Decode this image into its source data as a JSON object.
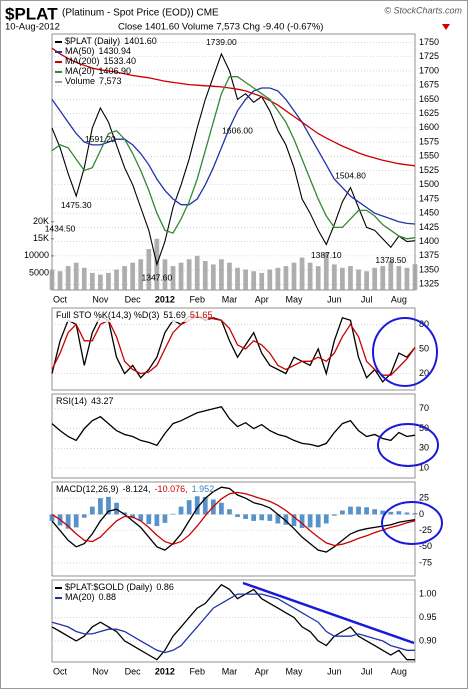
{
  "header": {
    "symbol": "$PLAT",
    "description": "(Platinum - Spot Price (EOD)) CME",
    "source": "© StockCharts.com",
    "date": "10-Aug-2012",
    "quote": "Close 1401.60 Volume 7,573 Chg -9.40 (-0.67%)"
  },
  "chart_data": [
    {
      "type": "line",
      "categories": [
        null,
        "Oct",
        null,
        null,
        null,
        null,
        "Nov",
        null,
        null,
        null,
        "Dec",
        null,
        null,
        null,
        "2012",
        null,
        null,
        null,
        "Feb",
        null,
        null,
        null,
        "Mar",
        null,
        null,
        null,
        "Apr",
        null,
        null,
        null,
        "May",
        null,
        null,
        null,
        null,
        "Jun",
        null,
        null,
        null,
        "Jul",
        null,
        null,
        null,
        "Aug",
        null,
        null
      ],
      "ylim": [
        1315,
        1765
      ],
      "yticks": [
        1325,
        1350,
        1375,
        1400,
        1425,
        1450,
        1475,
        1500,
        1525,
        1550,
        1575,
        1600,
        1625,
        1650,
        1675,
        1700,
        1725,
        1750
      ],
      "y2lim": [
        0,
        75000
      ],
      "y2ticks": [
        5000,
        10000,
        {
          "value": 15000,
          "label": "15K"
        },
        {
          "value": 20000,
          "label": "20K"
        }
      ],
      "series": [
        {
          "name": "Volume",
          "label_value": "7,573",
          "type": "bar",
          "axis": "y2",
          "color": "#a0a0a0",
          "values": [
            6000,
            5500,
            7000,
            8000,
            6500,
            5000,
            4500,
            5000,
            6000,
            7000,
            8000,
            9000,
            12000,
            15000,
            9000,
            7000,
            8000,
            9000,
            10000,
            8500,
            7500,
            9000,
            8000,
            6500,
            6000,
            5500,
            5000,
            6000,
            6500,
            7000,
            8000,
            9500,
            8000,
            7000,
            11000,
            7500,
            6500,
            7000,
            6000,
            5500,
            6500,
            7000,
            8500,
            7000,
            6500,
            7573
          ]
        },
        {
          "name": "$PLAT (Daily)",
          "label_value": "1401.60",
          "color": "#000000",
          "values": [
            1600,
            1565,
            1520,
            1480,
            1530,
            1600,
            1635,
            1610,
            1570,
            1530,
            1500,
            1460,
            1420,
            1360,
            1400,
            1460,
            1500,
            1545,
            1600,
            1650,
            1690,
            1730,
            1700,
            1650,
            1660,
            1645,
            1655,
            1630,
            1595,
            1570,
            1530,
            1475,
            1450,
            1420,
            1395,
            1430,
            1470,
            1495,
            1460,
            1425,
            1420,
            1405,
            1390,
            1410,
            1400,
            1401.6
          ]
        },
        {
          "name": "MA(50)",
          "label_value": "1430.94",
          "color": "#2233aa",
          "values": [
            1650,
            1630,
            1610,
            1590,
            1575,
            1570,
            1570,
            1575,
            1580,
            1580,
            1570,
            1555,
            1535,
            1510,
            1490,
            1475,
            1465,
            1465,
            1475,
            1500,
            1530,
            1565,
            1600,
            1630,
            1650,
            1665,
            1670,
            1670,
            1665,
            1650,
            1630,
            1610,
            1585,
            1560,
            1535,
            1510,
            1495,
            1480,
            1470,
            1460,
            1450,
            1445,
            1440,
            1435,
            1432,
            1430.94
          ]
        },
        {
          "name": "MA(200)",
          "label_value": "1533.40",
          "color": "#cc0000",
          "values": [
            1740,
            1730,
            1722,
            1715,
            1710,
            1705,
            1702,
            1700,
            1698,
            1695,
            1692,
            1690,
            1688,
            1685,
            1682,
            1680,
            1678,
            1676,
            1675,
            1674,
            1673,
            1672,
            1670,
            1668,
            1665,
            1660,
            1655,
            1648,
            1640,
            1630,
            1620,
            1610,
            1600,
            1590,
            1582,
            1575,
            1568,
            1562,
            1556,
            1551,
            1547,
            1543,
            1540,
            1537,
            1535,
            1533.4
          ]
        },
        {
          "name": "MA(20)",
          "label_value": "1406.90",
          "color": "#338833",
          "values": [
            1560,
            1570,
            1565,
            1545,
            1525,
            1530,
            1560,
            1590,
            1595,
            1580,
            1555,
            1525,
            1490,
            1450,
            1420,
            1415,
            1440,
            1470,
            1510,
            1560,
            1610,
            1660,
            1690,
            1690,
            1680,
            1670,
            1660,
            1650,
            1630,
            1610,
            1580,
            1545,
            1510,
            1475,
            1445,
            1425,
            1425,
            1440,
            1455,
            1455,
            1445,
            1430,
            1420,
            1410,
            1405,
            1406.9
          ]
        }
      ],
      "annotations": [
        {
          "label": "1591.20",
          "value": 1591.2,
          "index": 6
        },
        {
          "label": "1475.30",
          "value": 1475.3,
          "index": 3
        },
        {
          "label": "1434.50",
          "value": 1434.5,
          "index": 1
        },
        {
          "label": "1347.60",
          "value": 1347.6,
          "index": 13
        },
        {
          "label": "1739.00",
          "value": 1739,
          "index": 21
        },
        {
          "label": "1606.00",
          "value": 1606,
          "index": 23
        },
        {
          "label": "1504.80",
          "value": 1504.8,
          "index": 37
        },
        {
          "label": "1387.10",
          "value": 1387.1,
          "index": 34
        },
        {
          "label": "1378.50",
          "value": 1378.5,
          "index": 42
        }
      ]
    },
    {
      "type": "line",
      "title": "Full STO %K(14,3) %D(3)",
      "ylim": [
        0,
        100
      ],
      "yticks": [
        20,
        50,
        80
      ],
      "series": [
        {
          "name": "%K",
          "label_value": "51.69",
          "color": "#000000",
          "values": [
            20,
            60,
            85,
            80,
            30,
            70,
            90,
            85,
            40,
            20,
            30,
            15,
            25,
            40,
            70,
            85,
            80,
            90,
            90,
            85,
            88,
            85,
            60,
            40,
            55,
            70,
            45,
            30,
            25,
            20,
            40,
            35,
            30,
            50,
            20,
            60,
            88,
            85,
            40,
            15,
            25,
            10,
            20,
            45,
            40,
            51.69
          ]
        },
        {
          "name": "%D",
          "label_value": "51.65",
          "color": "#cc0000",
          "values": [
            25,
            45,
            70,
            80,
            60,
            60,
            80,
            85,
            65,
            35,
            25,
            20,
            22,
            30,
            50,
            70,
            80,
            85,
            90,
            88,
            87,
            85,
            75,
            55,
            50,
            60,
            55,
            45,
            30,
            25,
            30,
            35,
            35,
            40,
            35,
            45,
            65,
            80,
            65,
            35,
            25,
            18,
            18,
            28,
            38,
            51.65
          ]
        }
      ]
    },
    {
      "type": "line",
      "title": "RSI(14)",
      "ylim": [
        0,
        85
      ],
      "yticks": [
        10,
        30,
        50,
        70
      ],
      "series": [
        {
          "name": "RSI",
          "label_value": "43.27",
          "color": "#000000",
          "values": [
            55,
            48,
            42,
            38,
            50,
            58,
            62,
            55,
            48,
            44,
            42,
            38,
            36,
            33,
            45,
            55,
            58,
            62,
            66,
            68,
            70,
            72,
            60,
            52,
            56,
            50,
            54,
            48,
            44,
            42,
            38,
            35,
            34,
            32,
            35,
            46,
            55,
            58,
            48,
            42,
            44,
            40,
            38,
            46,
            42,
            43.27
          ]
        }
      ]
    },
    {
      "type": "line",
      "title": "MACD(12,26,9)",
      "ylim": [
        -95,
        50
      ],
      "yticks": [
        25,
        0,
        -25,
        -50,
        -75
      ],
      "series": [
        {
          "name": "Histogram",
          "label_value": "1.952",
          "type": "bar",
          "color": "#3a7fc1",
          "values": [
            -10,
            -17,
            -22,
            -20,
            -5,
            12,
            25,
            27,
            18,
            3,
            -6,
            -10,
            -15,
            -18,
            -13,
            1,
            12,
            22,
            28,
            27,
            23,
            18,
            8,
            -4,
            -7,
            -10,
            -9,
            -10,
            -14,
            -16,
            -18,
            -21,
            -20,
            -20,
            -14,
            -2,
            6,
            12,
            12,
            11,
            8,
            6,
            4,
            5,
            3,
            1.952
          ]
        },
        {
          "name": "MACD",
          "label_value": "-8.124,",
          "color": "#000000",
          "values": [
            -10,
            -25,
            -40,
            -50,
            -45,
            -30,
            -10,
            5,
            8,
            0,
            -10,
            -20,
            -35,
            -50,
            -55,
            -45,
            -30,
            -10,
            10,
            25,
            35,
            42,
            40,
            30,
            25,
            18,
            15,
            10,
            0,
            -10,
            -22,
            -35,
            -45,
            -55,
            -58,
            -50,
            -40,
            -30,
            -25,
            -22,
            -20,
            -18,
            -16,
            -12,
            -10,
            -8.124
          ]
        },
        {
          "name": "Signal",
          "label_value": "-10.076,",
          "color": "#cc0000",
          "values": [
            0,
            -8,
            -18,
            -30,
            -40,
            -42,
            -35,
            -22,
            -10,
            -3,
            -4,
            -10,
            -20,
            -32,
            -42,
            -46,
            -42,
            -32,
            -18,
            -2,
            12,
            24,
            32,
            34,
            32,
            28,
            24,
            20,
            14,
            6,
            -4,
            -14,
            -25,
            -35,
            -44,
            -48,
            -46,
            -42,
            -37,
            -33,
            -28,
            -24,
            -20,
            -17,
            -13,
            -10.076
          ]
        }
      ]
    },
    {
      "type": "line",
      "categories": [
        null,
        "Oct",
        null,
        null,
        null,
        null,
        "Nov",
        null,
        null,
        null,
        "Dec",
        null,
        null,
        null,
        "2012",
        null,
        null,
        null,
        "Feb",
        null,
        null,
        null,
        "Mar",
        null,
        null,
        null,
        "Apr",
        null,
        null,
        null,
        "May",
        null,
        null,
        null,
        null,
        "Jun",
        null,
        null,
        null,
        "Jul",
        null,
        null,
        null,
        "Aug",
        null,
        null
      ],
      "ylim": [
        0.855,
        1.03
      ],
      "yticks": [
        {
          "value": 0.9,
          "label": "0.90"
        },
        {
          "value": 0.95,
          "label": "0.95"
        },
        {
          "value": 1.0,
          "label": "1.00"
        }
      ],
      "series": [
        {
          "name": "$PLAT:$GOLD (Daily)",
          "label_value": "0.86",
          "color": "#000000",
          "values": [
            0.93,
            0.92,
            0.91,
            0.9,
            0.91,
            0.93,
            0.94,
            0.93,
            0.92,
            0.9,
            0.89,
            0.88,
            0.87,
            0.86,
            0.88,
            0.91,
            0.93,
            0.95,
            0.97,
            0.98,
            1.0,
            1.02,
            1.01,
            0.99,
            1.0,
            1.01,
            0.99,
            0.98,
            0.97,
            0.96,
            0.95,
            0.93,
            0.92,
            0.9,
            0.89,
            0.91,
            0.92,
            0.93,
            0.91,
            0.9,
            0.89,
            0.88,
            0.87,
            0.88,
            0.86,
            0.86
          ]
        },
        {
          "name": "MA(20)",
          "label_value": "0.88",
          "color": "#2233aa",
          "values": [
            0.94,
            0.935,
            0.93,
            0.92,
            0.915,
            0.915,
            0.92,
            0.925,
            0.925,
            0.92,
            0.91,
            0.9,
            0.89,
            0.88,
            0.875,
            0.88,
            0.89,
            0.91,
            0.93,
            0.95,
            0.97,
            0.98,
            0.99,
            1.0,
            1.0,
            1.0,
            1.0,
            0.995,
            0.99,
            0.98,
            0.97,
            0.96,
            0.95,
            0.94,
            0.92,
            0.91,
            0.91,
            0.91,
            0.915,
            0.91,
            0.905,
            0.9,
            0.89,
            0.885,
            0.88,
            0.88
          ]
        }
      ]
    }
  ]
}
